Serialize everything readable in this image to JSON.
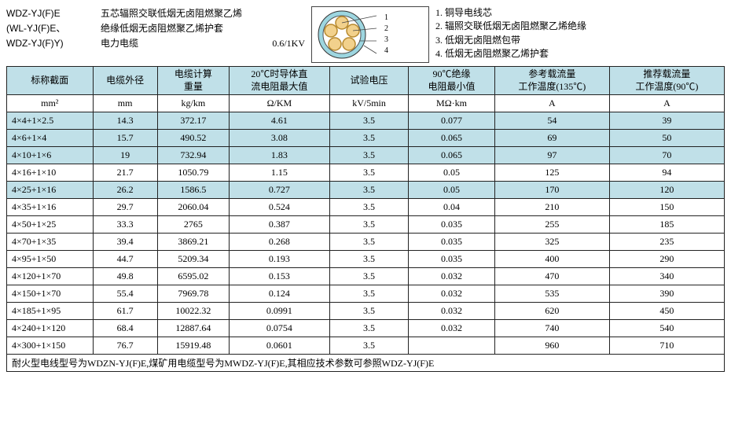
{
  "header": {
    "rows": [
      {
        "code": "WDZ-YJ(F)E",
        "desc": "五芯辐照交联低烟无卤阻燃聚乙烯"
      },
      {
        "code": "(WL-YJ(F)E、",
        "desc": "绝缘低烟无卤阻燃聚乙烯护套"
      },
      {
        "code": "WDZ-YJ(F)Y)",
        "desc": "电力电缆",
        "voltage": "0.6/1KV"
      }
    ]
  },
  "diagram": {
    "labels": [
      "1",
      "2",
      "3",
      "4"
    ],
    "colors": {
      "outer": "#9dd6e0",
      "inner_ring": "#ffffff",
      "core_fill": "#f2d18c",
      "core_stroke": "#b88a2e",
      "line": "#444444"
    }
  },
  "legend": [
    "1. 铜导电线芯",
    "2. 辐照交联低烟无卤阻燃聚乙烯绝缘",
    "3. 低烟无卤阻燃包带",
    "4. 低烟无卤阻燃聚乙烯护套"
  ],
  "table": {
    "header1": [
      "标称截面",
      "电缆外径",
      "电缆计算\n重量",
      "20℃时导体直\n流电阻最大值",
      "试验电压",
      "90℃绝缘\n电阻最小值",
      "参考载流量\n工作温度(135℃)",
      "推荐载流量\n工作温度(90℃)"
    ],
    "header2": [
      "mm²",
      "mm",
      "kg/km",
      "Ω/KM",
      "kV/5min",
      "MΩ·km",
      "A",
      "A"
    ],
    "rows": [
      {
        "hl": true,
        "c": [
          "4×4+1×2.5",
          "14.3",
          "372.17",
          "4.61",
          "3.5",
          "0.077",
          "54",
          "39"
        ]
      },
      {
        "hl": true,
        "c": [
          "4×6+1×4",
          "15.7",
          "490.52",
          "3.08",
          "3.5",
          "0.065",
          "69",
          "50"
        ]
      },
      {
        "hl": true,
        "c": [
          "4×10+1×6",
          "19",
          "732.94",
          "1.83",
          "3.5",
          "0.065",
          "97",
          "70"
        ]
      },
      {
        "hl": false,
        "c": [
          "4×16+1×10",
          "21.7",
          "1050.79",
          "1.15",
          "3.5",
          "0.05",
          "125",
          "94"
        ]
      },
      {
        "hl": true,
        "c": [
          "4×25+1×16",
          "26.2",
          "1586.5",
          "0.727",
          "3.5",
          "0.05",
          "170",
          "120"
        ]
      },
      {
        "hl": false,
        "c": [
          "4×35+1×16",
          "29.7",
          "2060.04",
          "0.524",
          "3.5",
          "0.04",
          "210",
          "150"
        ]
      },
      {
        "hl": false,
        "c": [
          "4×50+1×25",
          "33.3",
          "2765",
          "0.387",
          "3.5",
          "0.035",
          "255",
          "185"
        ]
      },
      {
        "hl": false,
        "c": [
          "4×70+1×35",
          "39.4",
          "3869.21",
          "0.268",
          "3.5",
          "0.035",
          "325",
          "235"
        ]
      },
      {
        "hl": false,
        "c": [
          "4×95+1×50",
          "44.7",
          "5209.34",
          "0.193",
          "3.5",
          "0.035",
          "400",
          "290"
        ]
      },
      {
        "hl": false,
        "c": [
          "4×120+1×70",
          "49.8",
          "6595.02",
          "0.153",
          "3.5",
          "0.032",
          "470",
          "340"
        ]
      },
      {
        "hl": false,
        "c": [
          "4×150+1×70",
          "55.4",
          "7969.78",
          "0.124",
          "3.5",
          "0.032",
          "535",
          "390"
        ]
      },
      {
        "hl": false,
        "c": [
          "4×185+1×95",
          "61.7",
          "10022.32",
          "0.0991",
          "3.5",
          "0.032",
          "620",
          "450"
        ]
      },
      {
        "hl": false,
        "c": [
          "4×240+1×120",
          "68.4",
          "12887.64",
          "0.0754",
          "3.5",
          "0.032",
          "740",
          "540"
        ]
      },
      {
        "hl": false,
        "c": [
          "4×300+1×150",
          "76.7",
          "15919.48",
          "0.0601",
          "3.5",
          "",
          "960",
          "710"
        ]
      }
    ],
    "footnote": "耐火型电线型号为WDZN-YJ(F)E,煤矿用电缆型号为MWDZ-YJ(F)E,其相应技术参数可参照WDZ-YJ(F)E"
  }
}
